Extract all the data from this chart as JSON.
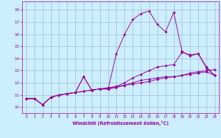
{
  "xlabel": "Windchill (Refroidissement éolien,°C)",
  "bg_color": "#cceeff",
  "line_color": "#990099",
  "grid_color": "#99bbcc",
  "x_hours": [
    0,
    1,
    2,
    3,
    4,
    5,
    6,
    7,
    8,
    9,
    10,
    11,
    12,
    13,
    14,
    15,
    16,
    17,
    18,
    19,
    20,
    21,
    22,
    23
  ],
  "series": {
    "line1": [
      10.7,
      10.7,
      10.2,
      10.8,
      11.0,
      11.1,
      11.2,
      11.3,
      11.4,
      11.5,
      11.6,
      11.7,
      11.8,
      11.9,
      12.0,
      12.1,
      12.3,
      12.4,
      12.5,
      12.6,
      12.8,
      12.9,
      13.0,
      13.1
    ],
    "line2": [
      10.7,
      10.7,
      10.2,
      10.8,
      11.0,
      11.1,
      11.2,
      11.3,
      11.4,
      11.5,
      11.5,
      11.6,
      11.8,
      12.0,
      12.2,
      12.3,
      12.4,
      12.5,
      12.5,
      12.6,
      12.7,
      12.8,
      12.9,
      12.6
    ],
    "line3": [
      10.7,
      10.7,
      10.2,
      10.8,
      11.0,
      11.1,
      11.2,
      12.5,
      11.4,
      11.5,
      11.5,
      11.7,
      12.0,
      12.4,
      12.7,
      13.0,
      13.3,
      13.4,
      13.5,
      14.5,
      14.3,
      14.4,
      13.3,
      12.6
    ],
    "line4": [
      10.7,
      10.7,
      10.2,
      10.8,
      11.0,
      11.1,
      11.2,
      12.5,
      11.4,
      11.5,
      11.5,
      14.4,
      16.0,
      17.2,
      17.7,
      17.9,
      16.8,
      16.2,
      17.8,
      14.6,
      14.2,
      14.4,
      13.2,
      12.6
    ]
  },
  "ylim": [
    9.5,
    18.7
  ],
  "xlim": [
    -0.5,
    23.5
  ],
  "yticks": [
    10,
    11,
    12,
    13,
    14,
    15,
    16,
    17,
    18
  ],
  "xticks": [
    0,
    1,
    2,
    3,
    4,
    5,
    6,
    7,
    8,
    9,
    10,
    11,
    12,
    13,
    14,
    15,
    16,
    17,
    18,
    19,
    20,
    21,
    22,
    23
  ]
}
